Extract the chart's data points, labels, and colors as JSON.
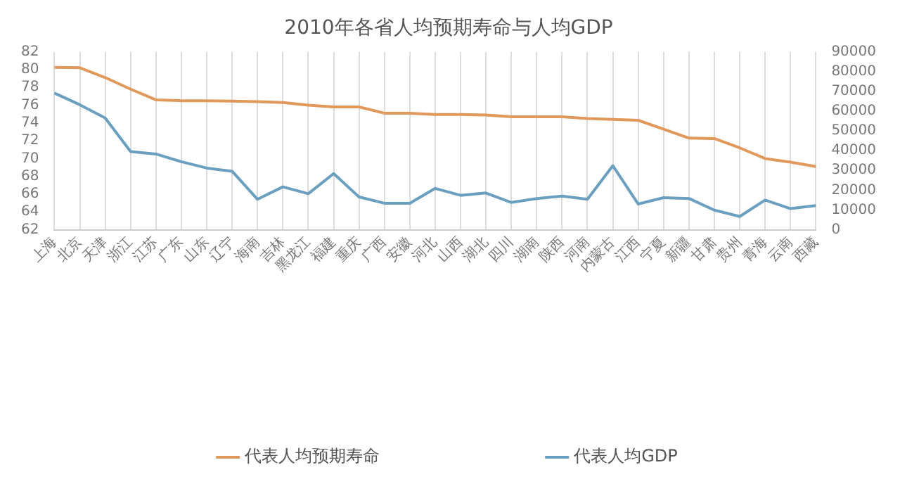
{
  "chart_data": {
    "type": "line",
    "title": "2010年各省人均预期寿命与人均GDP",
    "categories": [
      "上海",
      "北京",
      "天津",
      "浙江",
      "江苏",
      "广东",
      "山东",
      "辽宁",
      "海南",
      "吉林",
      "黑龙江",
      "福建",
      "重庆",
      "广西",
      "安徽",
      "河北",
      "山西",
      "湖北",
      "四川",
      "湖南",
      "陕西",
      "河南",
      "内蒙古",
      "江西",
      "宁夏",
      "新疆",
      "甘肃",
      "贵州",
      "青海",
      "云南",
      "西藏"
    ],
    "series": [
      {
        "name": "代表人均预期寿命",
        "color": "#e0995a",
        "values": [
          80.24,
          80.2,
          79.1,
          77.8,
          76.6,
          76.5,
          76.5,
          76.45,
          76.4,
          76.3,
          76.0,
          75.8,
          75.8,
          75.1,
          75.1,
          74.95,
          74.95,
          74.9,
          74.7,
          74.7,
          74.7,
          74.5,
          74.4,
          74.3,
          73.3,
          72.3,
          72.25,
          71.2,
          70.0,
          69.6,
          69.1
        ]
      },
      {
        "name": "代表人均GDP",
        "color": "#6b9fc0",
        "axis": "y2",
        "values": [
          69100,
          63200,
          56500,
          39500,
          38300,
          34400,
          31200,
          29600,
          15400,
          21700,
          18200,
          28400,
          16600,
          13400,
          13400,
          20900,
          17400,
          18600,
          13800,
          15800,
          17000,
          15400,
          32400,
          13000,
          16200,
          15800,
          9900,
          6700,
          15000,
          10700,
          12200
        ]
      }
    ],
    "ylim": [
      62,
      82
    ],
    "yticks": [
      62,
      64,
      66,
      68,
      70,
      72,
      74,
      76,
      78,
      80,
      82
    ],
    "y2lim": [
      0,
      90000
    ],
    "y2ticks": [
      0,
      10000,
      20000,
      30000,
      40000,
      50000,
      60000,
      70000,
      80000,
      90000
    ],
    "grid": "x",
    "legend": "bottom",
    "marker": "none",
    "line_style": "solid"
  }
}
